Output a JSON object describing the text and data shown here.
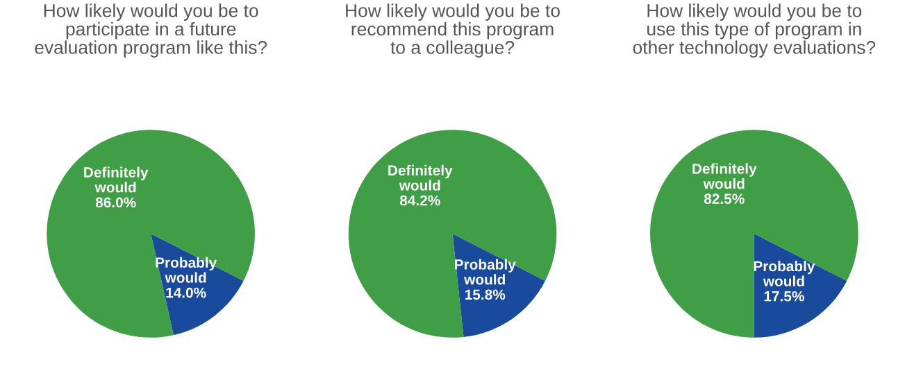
{
  "chart_data": [
    {
      "type": "pie",
      "title": "How likely would you be to\nparticipate in a future\nevaluation program like this?",
      "categories": [
        "Probably would",
        "Definitely would"
      ],
      "values": [
        14.0,
        86.0
      ],
      "colors": [
        "#1a4a9c",
        "#3f9e46"
      ],
      "value_labels": [
        "14.0%",
        "86.0%"
      ],
      "legend": false
    },
    {
      "type": "pie",
      "title": "How likely would you be to\nrecommend this program\nto a colleague?",
      "categories": [
        "Probably would",
        "Definitely would"
      ],
      "values": [
        15.8,
        84.2
      ],
      "colors": [
        "#1a4a9c",
        "#3f9e46"
      ],
      "value_labels": [
        "15.8%",
        "84.2%"
      ],
      "legend": false
    },
    {
      "type": "pie",
      "title": "How likely would you be to\nuse this type of program in\nother technology evaluations?",
      "categories": [
        "Probably would",
        "Definitely would"
      ],
      "values": [
        17.5,
        82.5
      ],
      "colors": [
        "#1a4a9c",
        "#3f9e46"
      ],
      "value_labels": [
        "17.5%",
        "82.5%"
      ],
      "legend": false
    }
  ]
}
